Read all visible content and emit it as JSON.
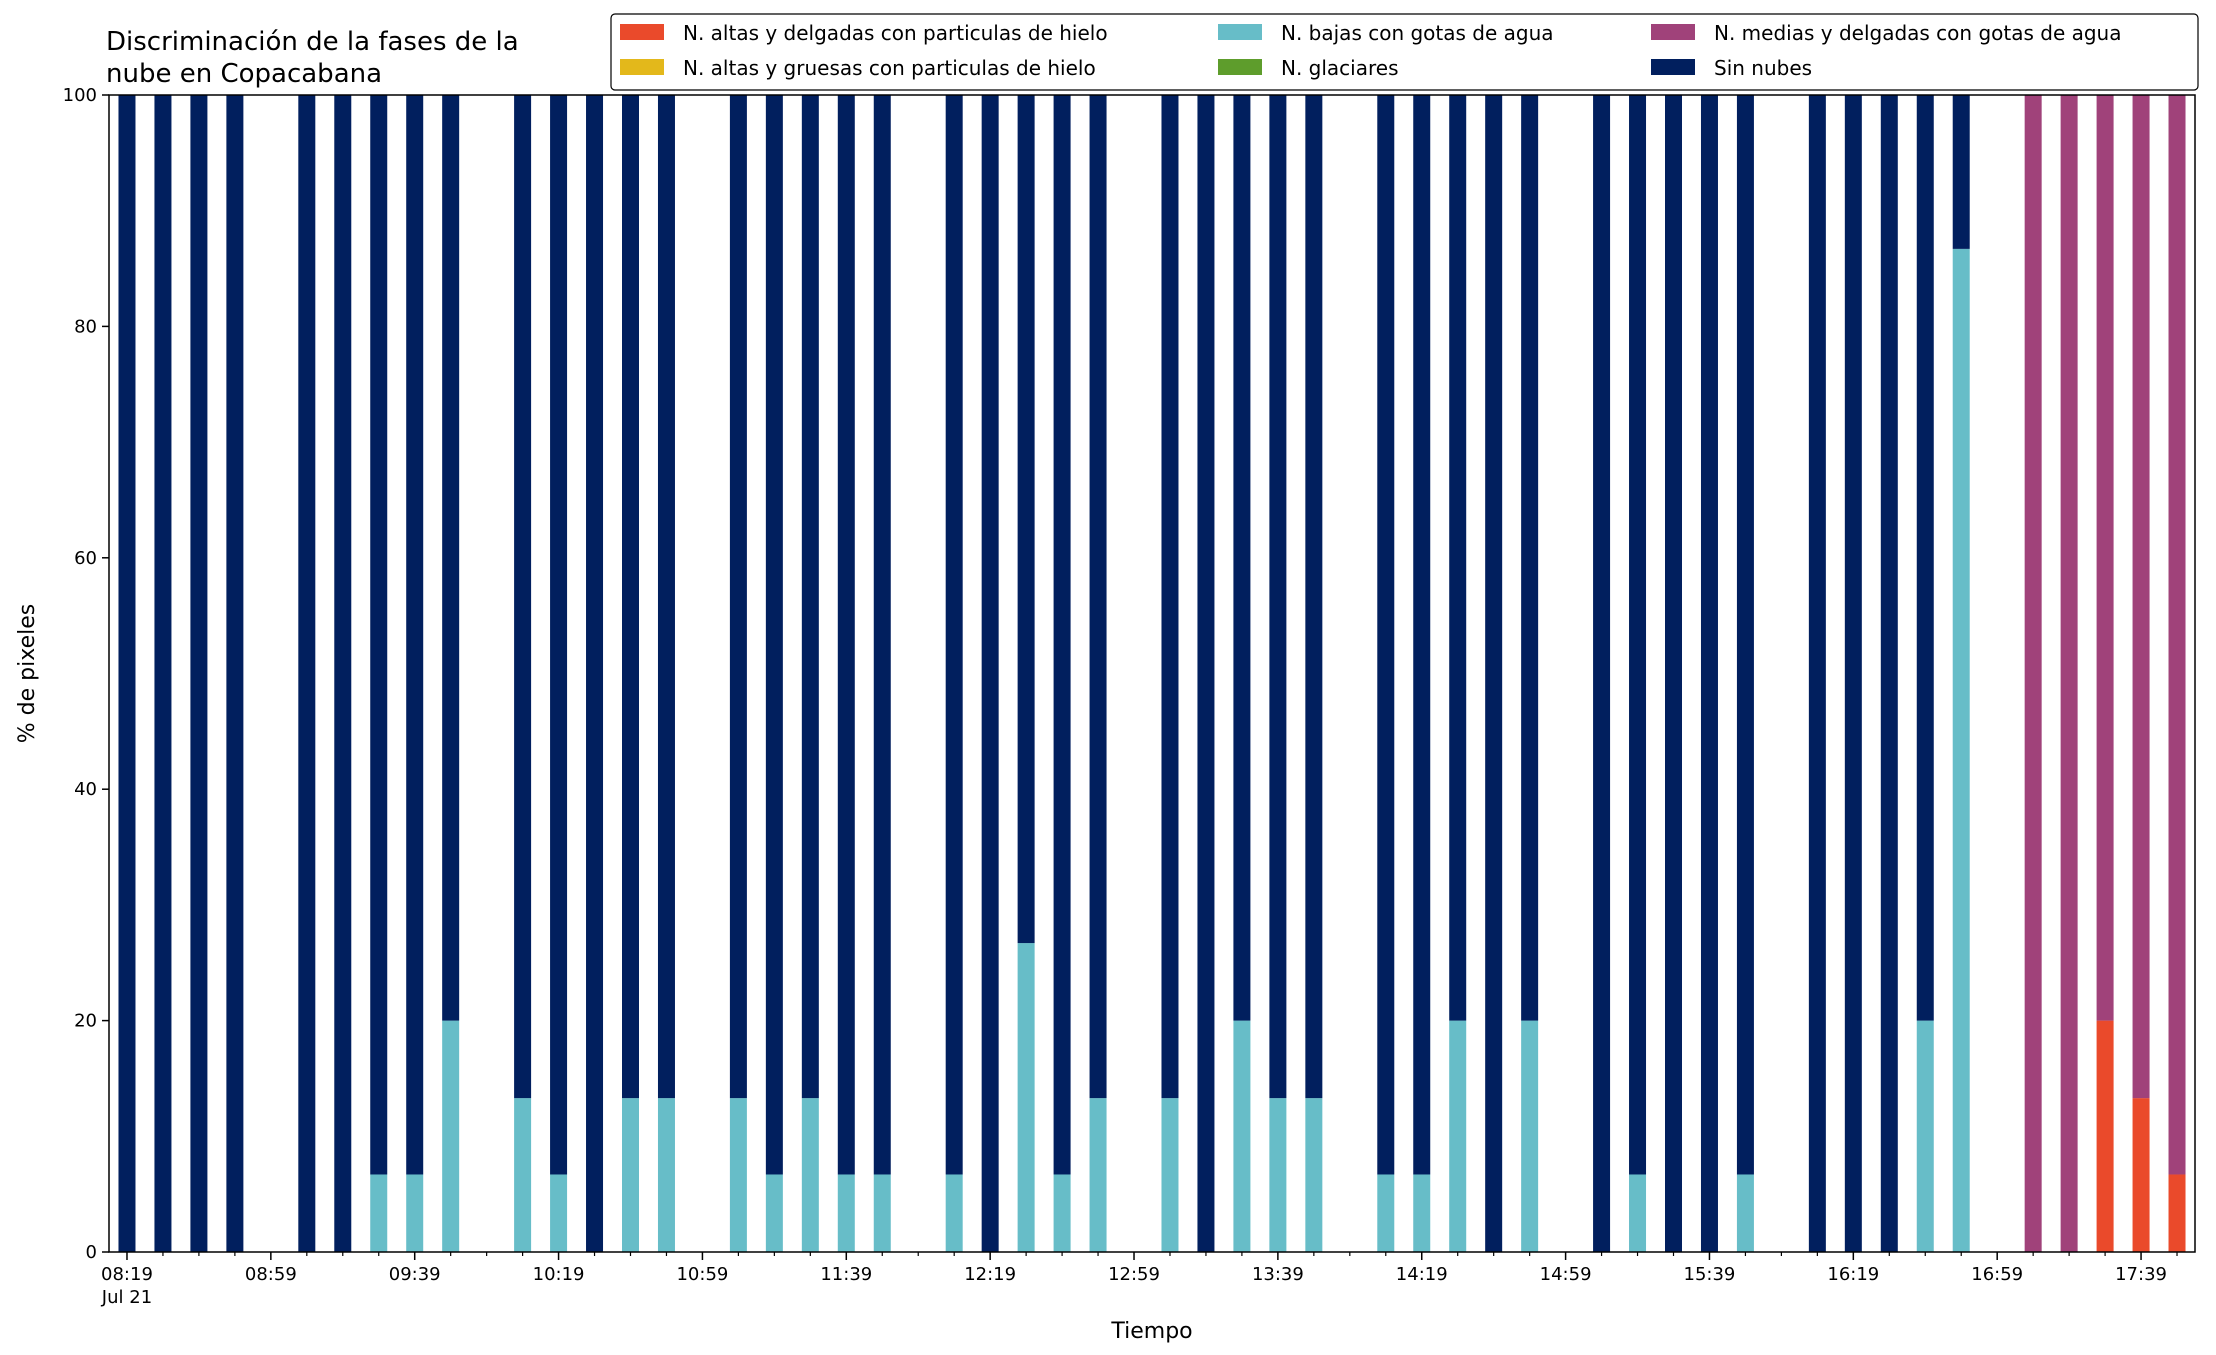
{
  "chart_data": {
    "type": "bar",
    "stacked": true,
    "title_lines": [
      "Discriminación de la fases de la",
      "nube en Copacabana"
    ],
    "xlabel": "Tiempo",
    "ylabel": "% de pixeles",
    "ylim": [
      0,
      100
    ],
    "yticks": [
      0,
      20,
      40,
      60,
      80,
      100
    ],
    "x_range_minutes": [
      "08:14",
      "17:54"
    ],
    "x_date_label": "Jul 21",
    "xtick_labels": [
      "08:19",
      "08:59",
      "09:39",
      "10:19",
      "10:59",
      "11:39",
      "12:19",
      "12:59",
      "13:39",
      "14:19",
      "14:59",
      "15:39",
      "16:19",
      "16:59",
      "17:39"
    ],
    "xtick_minor_times": [
      "08:29",
      "08:39",
      "08:49",
      "09:09",
      "09:19",
      "09:29",
      "09:49",
      "09:59",
      "10:09",
      "10:29",
      "10:39",
      "10:49",
      "11:09",
      "11:19",
      "11:29",
      "11:49",
      "11:59",
      "12:09",
      "12:29",
      "12:39",
      "12:49",
      "13:09",
      "13:19",
      "13:29",
      "13:49",
      "13:59",
      "14:09",
      "14:29",
      "14:39",
      "14:49",
      "15:09",
      "15:19",
      "15:29",
      "15:49",
      "15:59",
      "16:09",
      "16:29",
      "16:39",
      "16:49",
      "17:09",
      "17:19",
      "17:29",
      "17:49"
    ],
    "legend": {
      "placement": "top-right",
      "columns": 3,
      "entries": [
        {
          "label": "N. altas y delgadas con particulas de hielo",
          "color": "#ea4a2b"
        },
        {
          "label": "N. altas y gruesas con particulas de hielo",
          "color": "#e3b81b"
        },
        {
          "label": "N. bajas con gotas de agua",
          "color": "#67bdc8"
        },
        {
          "label": "N. glaciares",
          "color": "#5e9d2c"
        },
        {
          "label": "N. medias y delgadas con gotas de agua",
          "color": "#a0427a"
        },
        {
          "label": "Sin nubes",
          "color": "#011f5e"
        }
      ]
    },
    "series_order": [
      "altas_delgadas",
      "altas_gruesas",
      "bajas",
      "glaciares",
      "medias",
      "sin_nubes"
    ],
    "series_colors": {
      "altas_delgadas": "#ea4a2b",
      "altas_gruesas": "#e3b81b",
      "bajas": "#67bdc8",
      "glaciares": "#5e9d2c",
      "medias": "#a0427a",
      "sin_nubes": "#011f5e"
    },
    "bars": [
      {
        "time": "08:19",
        "altas_delgadas": 0,
        "altas_gruesas": 0,
        "bajas": 0,
        "glaciares": 0,
        "medias": 0,
        "sin_nubes": 100
      },
      {
        "time": "08:29",
        "altas_delgadas": 0,
        "altas_gruesas": 0,
        "bajas": 0,
        "glaciares": 0,
        "medias": 0,
        "sin_nubes": 100
      },
      {
        "time": "08:39",
        "altas_delgadas": 0,
        "altas_gruesas": 0,
        "bajas": 0,
        "glaciares": 0,
        "medias": 0,
        "sin_nubes": 100
      },
      {
        "time": "08:49",
        "altas_delgadas": 0,
        "altas_gruesas": 0,
        "bajas": 0,
        "glaciares": 0,
        "medias": 0,
        "sin_nubes": 100
      },
      {
        "time": "09:09",
        "altas_delgadas": 0,
        "altas_gruesas": 0,
        "bajas": 0,
        "glaciares": 0,
        "medias": 0,
        "sin_nubes": 100
      },
      {
        "time": "09:19",
        "altas_delgadas": 0,
        "altas_gruesas": 0,
        "bajas": 0,
        "glaciares": 0,
        "medias": 0,
        "sin_nubes": 100
      },
      {
        "time": "09:29",
        "altas_delgadas": 0,
        "altas_gruesas": 0,
        "bajas": 6.7,
        "glaciares": 0,
        "medias": 0,
        "sin_nubes": 93.3
      },
      {
        "time": "09:39",
        "altas_delgadas": 0,
        "altas_gruesas": 0,
        "bajas": 6.7,
        "glaciares": 0,
        "medias": 0,
        "sin_nubes": 93.3
      },
      {
        "time": "09:49",
        "altas_delgadas": 0,
        "altas_gruesas": 0,
        "bajas": 20,
        "glaciares": 0,
        "medias": 0,
        "sin_nubes": 80
      },
      {
        "time": "10:09",
        "altas_delgadas": 0,
        "altas_gruesas": 0,
        "bajas": 13.3,
        "glaciares": 0,
        "medias": 0,
        "sin_nubes": 86.7
      },
      {
        "time": "10:19",
        "altas_delgadas": 0,
        "altas_gruesas": 0,
        "bajas": 6.7,
        "glaciares": 0,
        "medias": 0,
        "sin_nubes": 93.3
      },
      {
        "time": "10:29",
        "altas_delgadas": 0,
        "altas_gruesas": 0,
        "bajas": 0,
        "glaciares": 0,
        "medias": 0,
        "sin_nubes": 100
      },
      {
        "time": "10:39",
        "altas_delgadas": 0,
        "altas_gruesas": 0,
        "bajas": 13.3,
        "glaciares": 0,
        "medias": 0,
        "sin_nubes": 86.7
      },
      {
        "time": "10:49",
        "altas_delgadas": 0,
        "altas_gruesas": 0,
        "bajas": 13.3,
        "glaciares": 0,
        "medias": 0,
        "sin_nubes": 86.7
      },
      {
        "time": "11:09",
        "altas_delgadas": 0,
        "altas_gruesas": 0,
        "bajas": 13.3,
        "glaciares": 0,
        "medias": 0,
        "sin_nubes": 86.7
      },
      {
        "time": "11:19",
        "altas_delgadas": 0,
        "altas_gruesas": 0,
        "bajas": 6.7,
        "glaciares": 0,
        "medias": 0,
        "sin_nubes": 93.3
      },
      {
        "time": "11:29",
        "altas_delgadas": 0,
        "altas_gruesas": 0,
        "bajas": 13.3,
        "glaciares": 0,
        "medias": 0,
        "sin_nubes": 86.7
      },
      {
        "time": "11:39",
        "altas_delgadas": 0,
        "altas_gruesas": 0,
        "bajas": 6.7,
        "glaciares": 0,
        "medias": 0,
        "sin_nubes": 93.3
      },
      {
        "time": "11:49",
        "altas_delgadas": 0,
        "altas_gruesas": 0,
        "bajas": 6.7,
        "glaciares": 0,
        "medias": 0,
        "sin_nubes": 93.3
      },
      {
        "time": "12:09",
        "altas_delgadas": 0,
        "altas_gruesas": 0,
        "bajas": 6.7,
        "glaciares": 0,
        "medias": 0,
        "sin_nubes": 93.3
      },
      {
        "time": "12:19",
        "altas_delgadas": 0,
        "altas_gruesas": 0,
        "bajas": 0,
        "glaciares": 0,
        "medias": 0,
        "sin_nubes": 100
      },
      {
        "time": "12:29",
        "altas_delgadas": 0,
        "altas_gruesas": 0,
        "bajas": 26.7,
        "glaciares": 0,
        "medias": 0,
        "sin_nubes": 73.3
      },
      {
        "time": "12:39",
        "altas_delgadas": 0,
        "altas_gruesas": 0,
        "bajas": 6.7,
        "glaciares": 0,
        "medias": 0,
        "sin_nubes": 93.3
      },
      {
        "time": "12:49",
        "altas_delgadas": 0,
        "altas_gruesas": 0,
        "bajas": 13.3,
        "glaciares": 0,
        "medias": 0,
        "sin_nubes": 86.7
      },
      {
        "time": "13:09",
        "altas_delgadas": 0,
        "altas_gruesas": 0,
        "bajas": 13.3,
        "glaciares": 0,
        "medias": 0,
        "sin_nubes": 86.7
      },
      {
        "time": "13:19",
        "altas_delgadas": 0,
        "altas_gruesas": 0,
        "bajas": 0,
        "glaciares": 0,
        "medias": 0,
        "sin_nubes": 100
      },
      {
        "time": "13:29",
        "altas_delgadas": 0,
        "altas_gruesas": 0,
        "bajas": 20,
        "glaciares": 0,
        "medias": 0,
        "sin_nubes": 80
      },
      {
        "time": "13:39",
        "altas_delgadas": 0,
        "altas_gruesas": 0,
        "bajas": 13.3,
        "glaciares": 0,
        "medias": 0,
        "sin_nubes": 86.7
      },
      {
        "time": "13:49",
        "altas_delgadas": 0,
        "altas_gruesas": 0,
        "bajas": 13.3,
        "glaciares": 0,
        "medias": 0,
        "sin_nubes": 86.7
      },
      {
        "time": "14:09",
        "altas_delgadas": 0,
        "altas_gruesas": 0,
        "bajas": 6.7,
        "glaciares": 0,
        "medias": 0,
        "sin_nubes": 93.3
      },
      {
        "time": "14:19",
        "altas_delgadas": 0,
        "altas_gruesas": 0,
        "bajas": 6.7,
        "glaciares": 0,
        "medias": 0,
        "sin_nubes": 93.3
      },
      {
        "time": "14:29",
        "altas_delgadas": 0,
        "altas_gruesas": 0,
        "bajas": 20,
        "glaciares": 0,
        "medias": 0,
        "sin_nubes": 80
      },
      {
        "time": "14:39",
        "altas_delgadas": 0,
        "altas_gruesas": 0,
        "bajas": 0,
        "glaciares": 0,
        "medias": 0,
        "sin_nubes": 100
      },
      {
        "time": "14:49",
        "altas_delgadas": 0,
        "altas_gruesas": 0,
        "bajas": 20,
        "glaciares": 0,
        "medias": 0,
        "sin_nubes": 80
      },
      {
        "time": "15:09",
        "altas_delgadas": 0,
        "altas_gruesas": 0,
        "bajas": 0,
        "glaciares": 0,
        "medias": 0,
        "sin_nubes": 100
      },
      {
        "time": "15:19",
        "altas_delgadas": 0,
        "altas_gruesas": 0,
        "bajas": 6.7,
        "glaciares": 0,
        "medias": 0,
        "sin_nubes": 93.3
      },
      {
        "time": "15:29",
        "altas_delgadas": 0,
        "altas_gruesas": 0,
        "bajas": 0,
        "glaciares": 0,
        "medias": 0,
        "sin_nubes": 100
      },
      {
        "time": "15:39",
        "altas_delgadas": 0,
        "altas_gruesas": 0,
        "bajas": 0,
        "glaciares": 0,
        "medias": 0,
        "sin_nubes": 100
      },
      {
        "time": "15:49",
        "altas_delgadas": 0,
        "altas_gruesas": 0,
        "bajas": 6.7,
        "glaciares": 0,
        "medias": 0,
        "sin_nubes": 93.3
      },
      {
        "time": "16:09",
        "altas_delgadas": 0,
        "altas_gruesas": 0,
        "bajas": 0,
        "glaciares": 0,
        "medias": 0,
        "sin_nubes": 100
      },
      {
        "time": "16:19",
        "altas_delgadas": 0,
        "altas_gruesas": 0,
        "bajas": 0,
        "glaciares": 0,
        "medias": 0,
        "sin_nubes": 100
      },
      {
        "time": "16:29",
        "altas_delgadas": 0,
        "altas_gruesas": 0,
        "bajas": 0,
        "glaciares": 0,
        "medias": 0,
        "sin_nubes": 100
      },
      {
        "time": "16:39",
        "altas_delgadas": 0,
        "altas_gruesas": 0,
        "bajas": 20,
        "glaciares": 0,
        "medias": 0,
        "sin_nubes": 80
      },
      {
        "time": "16:49",
        "altas_delgadas": 0,
        "altas_gruesas": 0,
        "bajas": 86.7,
        "glaciares": 0,
        "medias": 0,
        "sin_nubes": 13.3
      },
      {
        "time": "17:09",
        "altas_delgadas": 0,
        "altas_gruesas": 0,
        "bajas": 0,
        "glaciares": 0,
        "medias": 100,
        "sin_nubes": 0
      },
      {
        "time": "17:19",
        "altas_delgadas": 0,
        "altas_gruesas": 0,
        "bajas": 0,
        "glaciares": 0,
        "medias": 100,
        "sin_nubes": 0
      },
      {
        "time": "17:29",
        "altas_delgadas": 20,
        "altas_gruesas": 0,
        "bajas": 0,
        "glaciares": 0,
        "medias": 80,
        "sin_nubes": 0
      },
      {
        "time": "17:39",
        "altas_delgadas": 13.3,
        "altas_gruesas": 0,
        "bajas": 0,
        "glaciares": 0,
        "medias": 86.7,
        "sin_nubes": 0
      },
      {
        "time": "17:49",
        "altas_delgadas": 6.7,
        "altas_gruesas": 0,
        "bajas": 0,
        "glaciares": 0,
        "medias": 93.3,
        "sin_nubes": 0
      }
    ]
  }
}
